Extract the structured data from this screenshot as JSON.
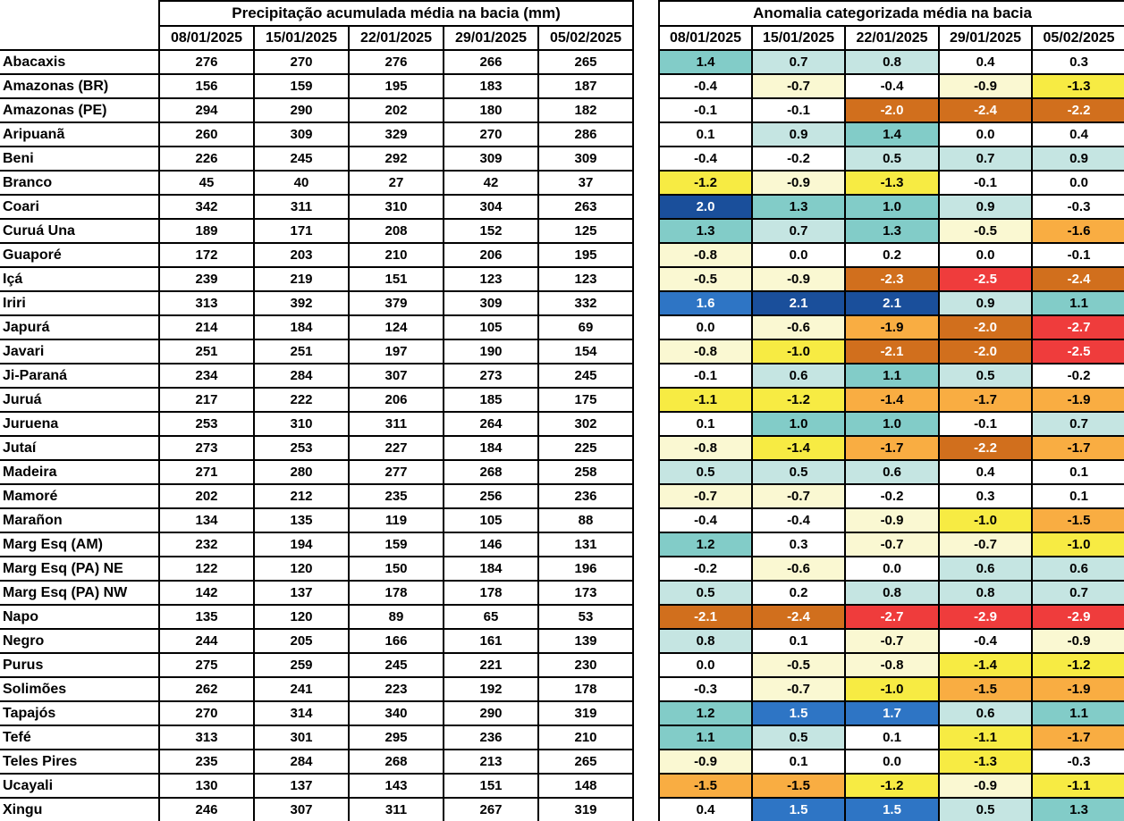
{
  "chart_data": {
    "type": "table",
    "subtype": "heatmap-table",
    "basins": [
      "Abacaxis",
      "Amazonas (BR)",
      "Amazonas (PE)",
      "Aripuanã",
      "Beni",
      "Branco",
      "Coari",
      "Curuá Una",
      "Guaporé",
      "Içá",
      "Iriri",
      "Japurá",
      "Javari",
      "Ji-Paraná",
      "Juruá",
      "Juruena",
      "Jutaí",
      "Madeira",
      "Mamoré",
      "Marañon",
      "Marg Esq (AM)",
      "Marg Esq (PA) NE",
      "Marg Esq (PA) NW",
      "Napo",
      "Negro",
      "Purus",
      "Solimões",
      "Tapajós",
      "Tefé",
      "Teles Pires",
      "Ucayali",
      "Xingu"
    ],
    "precipitation": {
      "title": "Precipitação acumulada média na bacia (mm)",
      "unit": "mm",
      "columns": [
        "08/01/2025",
        "15/01/2025",
        "22/01/2025",
        "29/01/2025",
        "05/02/2025"
      ],
      "values": [
        [
          276,
          270,
          276,
          266,
          265
        ],
        [
          156,
          159,
          195,
          183,
          187
        ],
        [
          294,
          290,
          202,
          180,
          182
        ],
        [
          260,
          309,
          329,
          270,
          286
        ],
        [
          226,
          245,
          292,
          309,
          309
        ],
        [
          45,
          40,
          27,
          42,
          37
        ],
        [
          342,
          311,
          310,
          304,
          263
        ],
        [
          189,
          171,
          208,
          152,
          125
        ],
        [
          172,
          203,
          210,
          206,
          195
        ],
        [
          239,
          219,
          151,
          123,
          123
        ],
        [
          313,
          392,
          379,
          309,
          332
        ],
        [
          214,
          184,
          124,
          105,
          69
        ],
        [
          251,
          251,
          197,
          190,
          154
        ],
        [
          234,
          284,
          307,
          273,
          245
        ],
        [
          217,
          222,
          206,
          185,
          175
        ],
        [
          253,
          310,
          311,
          264,
          302
        ],
        [
          273,
          253,
          227,
          184,
          225
        ],
        [
          271,
          280,
          277,
          268,
          258
        ],
        [
          202,
          212,
          235,
          256,
          236
        ],
        [
          134,
          135,
          119,
          105,
          88
        ],
        [
          232,
          194,
          159,
          146,
          131
        ],
        [
          122,
          120,
          150,
          184,
          196
        ],
        [
          142,
          137,
          178,
          178,
          173
        ],
        [
          135,
          120,
          89,
          65,
          53
        ],
        [
          244,
          205,
          166,
          161,
          139
        ],
        [
          275,
          259,
          245,
          221,
          230
        ],
        [
          262,
          241,
          223,
          192,
          178
        ],
        [
          270,
          314,
          340,
          290,
          319
        ],
        [
          313,
          301,
          295,
          236,
          210
        ],
        [
          235,
          284,
          268,
          213,
          265
        ],
        [
          130,
          137,
          143,
          151,
          148
        ],
        [
          246,
          307,
          311,
          267,
          319
        ]
      ]
    },
    "anomaly": {
      "title": "Anomalia categorizada média na bacia",
      "columns": [
        "08/01/2025",
        "15/01/2025",
        "22/01/2025",
        "29/01/2025",
        "05/02/2025"
      ],
      "values": [
        [
          "1.4",
          "0.7",
          "0.8",
          "0.4",
          "0.3"
        ],
        [
          "-0.4",
          "-0.7",
          "-0.4",
          "-0.9",
          "-1.3"
        ],
        [
          "-0.1",
          "-0.1",
          "-2.0",
          "-2.4",
          "-2.2"
        ],
        [
          "0.1",
          "0.9",
          "1.4",
          "0.0",
          "0.4"
        ],
        [
          "-0.4",
          "-0.2",
          "0.5",
          "0.7",
          "0.9"
        ],
        [
          "-1.2",
          "-0.9",
          "-1.3",
          "-0.1",
          "0.0"
        ],
        [
          "2.0",
          "1.3",
          "1.0",
          "0.9",
          "-0.3"
        ],
        [
          "1.3",
          "0.7",
          "1.3",
          "-0.5",
          "-1.6"
        ],
        [
          "-0.8",
          "0.0",
          "0.2",
          "0.0",
          "-0.1"
        ],
        [
          "-0.5",
          "-0.9",
          "-2.3",
          "-2.5",
          "-2.4"
        ],
        [
          "1.6",
          "2.1",
          "2.1",
          "0.9",
          "1.1"
        ],
        [
          "0.0",
          "-0.6",
          "-1.9",
          "-2.0",
          "-2.7"
        ],
        [
          "-0.8",
          "-1.0",
          "-2.1",
          "-2.0",
          "-2.5"
        ],
        [
          "-0.1",
          "0.6",
          "1.1",
          "0.5",
          "-0.2"
        ],
        [
          "-1.1",
          "-1.2",
          "-1.4",
          "-1.7",
          "-1.9"
        ],
        [
          "0.1",
          "1.0",
          "1.0",
          "-0.1",
          "0.7"
        ],
        [
          "-0.8",
          "-1.4",
          "-1.7",
          "-2.2",
          "-1.7"
        ],
        [
          "0.5",
          "0.5",
          "0.6",
          "0.4",
          "0.1"
        ],
        [
          "-0.7",
          "-0.7",
          "-0.2",
          "0.3",
          "0.1"
        ],
        [
          "-0.4",
          "-0.4",
          "-0.9",
          "-1.0",
          "-1.5"
        ],
        [
          "1.2",
          "0.3",
          "-0.7",
          "-0.7",
          "-1.0"
        ],
        [
          "-0.2",
          "-0.6",
          "0.0",
          "0.6",
          "0.6"
        ],
        [
          "0.5",
          "0.2",
          "0.8",
          "0.8",
          "0.7"
        ],
        [
          "-2.1",
          "-2.4",
          "-2.7",
          "-2.9",
          "-2.9"
        ],
        [
          "0.8",
          "0.1",
          "-0.7",
          "-0.4",
          "-0.9"
        ],
        [
          "0.0",
          "-0.5",
          "-0.8",
          "-1.4",
          "-1.2"
        ],
        [
          "-0.3",
          "-0.7",
          "-1.0",
          "-1.5",
          "-1.9"
        ],
        [
          "1.2",
          "1.5",
          "1.7",
          "0.6",
          "1.1"
        ],
        [
          "1.1",
          "0.5",
          "0.1",
          "-1.1",
          "-1.7"
        ],
        [
          "-0.9",
          "0.1",
          "0.0",
          "-1.3",
          "-0.3"
        ],
        [
          "-1.5",
          "-1.5",
          "-1.2",
          "-0.9",
          "-1.1"
        ],
        [
          "0.4",
          "1.5",
          "1.5",
          "0.5",
          "1.3"
        ]
      ],
      "cell_categories": [
        [
          "t2",
          "t1",
          "t1",
          "w",
          "w"
        ],
        [
          "w",
          "y1",
          "w",
          "y1",
          "y2"
        ],
        [
          "w",
          "w",
          "o2",
          "o2",
          "o2"
        ],
        [
          "w",
          "t1",
          "t2",
          "w",
          "w"
        ],
        [
          "w",
          "w",
          "t1",
          "t1",
          "t1"
        ],
        [
          "y2",
          "y1",
          "y2",
          "w",
          "w"
        ],
        [
          "b2",
          "t2",
          "t2",
          "t1",
          "w"
        ],
        [
          "t2",
          "t1",
          "t2",
          "y1",
          "o1"
        ],
        [
          "y1",
          "w",
          "w",
          "w",
          "w"
        ],
        [
          "y1",
          "y1",
          "o2",
          "r",
          "o2"
        ],
        [
          "b1",
          "b2",
          "b2",
          "t1",
          "t2"
        ],
        [
          "w",
          "y1",
          "o1",
          "o2",
          "r"
        ],
        [
          "y1",
          "y2",
          "o2",
          "o2",
          "r"
        ],
        [
          "w",
          "t1",
          "t2",
          "t1",
          "w"
        ],
        [
          "y2",
          "y2",
          "o1",
          "o1",
          "o1"
        ],
        [
          "w",
          "t2",
          "t2",
          "w",
          "t1"
        ],
        [
          "y1",
          "y2",
          "o1",
          "o2",
          "o1"
        ],
        [
          "t1",
          "t1",
          "t1",
          "w",
          "w"
        ],
        [
          "y1",
          "y1",
          "w",
          "w",
          "w"
        ],
        [
          "w",
          "w",
          "y1",
          "y2",
          "o1"
        ],
        [
          "t2",
          "w",
          "y1",
          "y1",
          "y2"
        ],
        [
          "w",
          "y1",
          "w",
          "t1",
          "t1"
        ],
        [
          "t1",
          "w",
          "t1",
          "t1",
          "t1"
        ],
        [
          "o2",
          "o2",
          "r",
          "r",
          "r"
        ],
        [
          "t1",
          "w",
          "y1",
          "w",
          "y1"
        ],
        [
          "w",
          "y1",
          "y1",
          "y2",
          "y2"
        ],
        [
          "w",
          "y1",
          "y2",
          "o1",
          "o1"
        ],
        [
          "t2",
          "b1",
          "b1",
          "t1",
          "t2"
        ],
        [
          "t2",
          "t1",
          "w",
          "y2",
          "o1"
        ],
        [
          "y1",
          "w",
          "w",
          "y2",
          "w"
        ],
        [
          "o1",
          "o1",
          "y2",
          "y1",
          "y2"
        ],
        [
          "w",
          "b1",
          "b1",
          "t1",
          "t2"
        ]
      ],
      "category_colors": {
        "b2": "#1A4F9B",
        "b1": "#2E75C5",
        "t2": "#82CCC8",
        "t1": "#C5E5E2",
        "w": "#FFFFFF",
        "y1": "#FAF8D2",
        "y2": "#F7EB43",
        "o1": "#F9AD42",
        "o2": "#D16F1D",
        "r": "#EF3C3C"
      },
      "white_text_categories": [
        "b2",
        "b1",
        "o2",
        "r"
      ]
    }
  }
}
